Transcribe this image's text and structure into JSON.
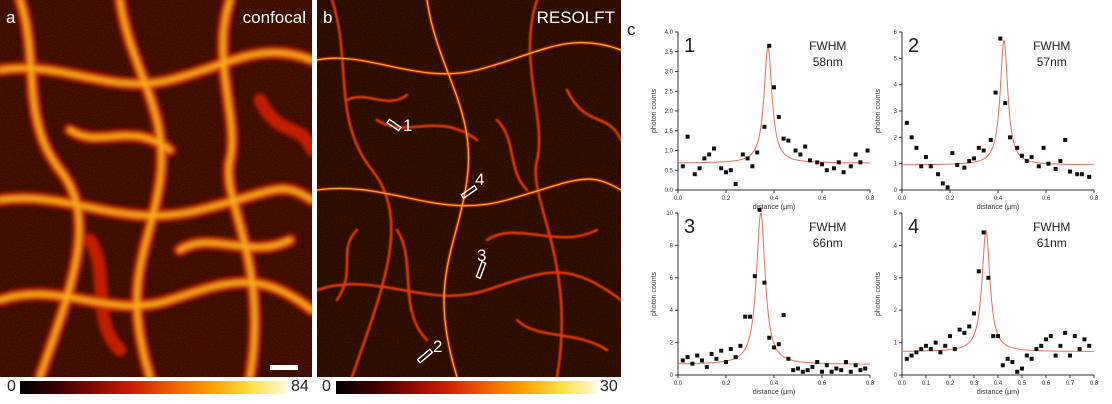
{
  "panels": {
    "a": {
      "letter": "a",
      "title": "confocal",
      "cmin": "0",
      "cmax": "84"
    },
    "b": {
      "letter": "b",
      "title": "RESOLFT",
      "cmin": "0",
      "cmax": "30"
    },
    "c": {
      "letter": "c"
    }
  },
  "markers": [
    {
      "label": "1"
    },
    {
      "label": "4"
    },
    {
      "label": "3"
    },
    {
      "label": "2"
    }
  ],
  "colormap": [
    "#000000",
    "#3a0000",
    "#8a0a00",
    "#d02000",
    "#f06000",
    "#ffa000",
    "#ffe040",
    "#fffbe0"
  ],
  "chart_data": [
    {
      "type": "scatter",
      "id": "1",
      "fwhm_label": "FWHM",
      "fwhm_value": "58nm",
      "xlabel": "distance (µm)",
      "ylabel": "photon counts",
      "xlim": [
        0,
        0.8
      ],
      "ylim": [
        0,
        4.0
      ],
      "xticks": [
        "0.0",
        "0.2",
        "0.4",
        "0.6",
        "0.8"
      ],
      "yticks": [
        "0.0",
        "0.5",
        "1.0",
        "1.5",
        "2.0",
        "2.5",
        "3.0",
        "3.5",
        "4.0"
      ],
      "x": [
        0.02,
        0.04,
        0.07,
        0.09,
        0.11,
        0.13,
        0.15,
        0.18,
        0.2,
        0.22,
        0.24,
        0.27,
        0.29,
        0.31,
        0.33,
        0.36,
        0.38,
        0.4,
        0.42,
        0.44,
        0.46,
        0.49,
        0.51,
        0.53,
        0.55,
        0.58,
        0.6,
        0.62,
        0.65,
        0.67,
        0.69,
        0.72,
        0.74,
        0.76,
        0.79
      ],
      "y": [
        0.6,
        1.35,
        0.4,
        0.55,
        0.8,
        0.9,
        1.05,
        0.55,
        0.45,
        0.5,
        0.15,
        0.9,
        0.8,
        0.6,
        0.95,
        1.6,
        3.65,
        2.6,
        1.85,
        1.3,
        1.25,
        1.0,
        0.9,
        1.1,
        0.75,
        0.7,
        0.65,
        0.5,
        0.55,
        0.7,
        0.45,
        0.6,
        0.9,
        0.7,
        1.0
      ],
      "fit": {
        "baseline": 0.68,
        "amp": 2.95,
        "center": 0.375,
        "gamma": 0.02
      }
    },
    {
      "type": "scatter",
      "id": "2",
      "fwhm_label": "FWHM",
      "fwhm_value": "57nm",
      "xlabel": "distance (µm)",
      "ylabel": "photon counts",
      "xlim": [
        0,
        0.8
      ],
      "ylim": [
        0,
        6
      ],
      "xticks": [
        "0.0",
        "0.2",
        "0.4",
        "0.6",
        "0.8"
      ],
      "yticks": [
        "0",
        "1",
        "2",
        "3",
        "4",
        "5",
        "6"
      ],
      "x": [
        0.02,
        0.04,
        0.06,
        0.08,
        0.1,
        0.12,
        0.15,
        0.17,
        0.19,
        0.21,
        0.23,
        0.26,
        0.28,
        0.3,
        0.32,
        0.34,
        0.37,
        0.39,
        0.41,
        0.43,
        0.45,
        0.48,
        0.5,
        0.52,
        0.54,
        0.57,
        0.59,
        0.61,
        0.64,
        0.66,
        0.68,
        0.7,
        0.73,
        0.75,
        0.78
      ],
      "y": [
        2.55,
        2.0,
        1.6,
        0.9,
        1.25,
        0.9,
        0.6,
        0.25,
        0.1,
        1.4,
        0.95,
        0.85,
        1.1,
        1.2,
        1.6,
        1.5,
        1.9,
        3.7,
        5.75,
        3.3,
        2.0,
        1.6,
        1.3,
        1.1,
        1.25,
        0.9,
        1.6,
        1.0,
        0.8,
        1.1,
        1.9,
        0.7,
        0.6,
        0.6,
        0.5
      ],
      "fit": {
        "baseline": 0.95,
        "amp": 4.75,
        "center": 0.425,
        "gamma": 0.019
      }
    },
    {
      "type": "scatter",
      "id": "3",
      "fwhm_label": "FWHM",
      "fwhm_value": "66nm",
      "xlabel": "distance (µm)",
      "ylabel": "photon counts",
      "xlim": [
        0,
        0.8
      ],
      "ylim": [
        0,
        10
      ],
      "xticks": [
        "0.0",
        "0.2",
        "0.4",
        "0.6",
        "0.8"
      ],
      "yticks": [
        "0",
        "2",
        "4",
        "6",
        "8",
        "10"
      ],
      "x": [
        0.02,
        0.04,
        0.06,
        0.08,
        0.1,
        0.12,
        0.14,
        0.16,
        0.18,
        0.2,
        0.22,
        0.24,
        0.26,
        0.28,
        0.3,
        0.32,
        0.34,
        0.36,
        0.38,
        0.4,
        0.42,
        0.44,
        0.46,
        0.48,
        0.5,
        0.52,
        0.54,
        0.56,
        0.58,
        0.6,
        0.62,
        0.64,
        0.66,
        0.68,
        0.7,
        0.72,
        0.74,
        0.76,
        0.78
      ],
      "y": [
        0.9,
        1.1,
        0.7,
        1.2,
        0.9,
        0.5,
        1.3,
        1.0,
        1.5,
        0.8,
        1.6,
        1.1,
        1.8,
        3.6,
        3.6,
        6.1,
        10.2,
        5.7,
        2.3,
        1.7,
        1.9,
        3.7,
        1.0,
        0.3,
        0.4,
        0.2,
        0.3,
        0.5,
        0.8,
        0.2,
        0.6,
        0.2,
        0.4,
        0.3,
        0.8,
        0.2,
        0.6,
        0.3,
        0.4
      ],
      "fit": {
        "baseline": 0.65,
        "amp": 9.4,
        "center": 0.345,
        "gamma": 0.022
      }
    },
    {
      "type": "scatter",
      "id": "4",
      "fwhm_label": "FWHM",
      "fwhm_value": "61nm",
      "xlabel": "distance (µm)",
      "ylabel": "photon counts",
      "xlim": [
        0,
        0.8
      ],
      "ylim": [
        0,
        5
      ],
      "xticks": [
        "0.0",
        "0.1",
        "0.2",
        "0.3",
        "0.4",
        "0.5",
        "0.6",
        "0.7",
        "0.8"
      ],
      "yticks": [
        "0",
        "1",
        "2",
        "3",
        "4",
        "5"
      ],
      "x": [
        0.02,
        0.04,
        0.06,
        0.08,
        0.1,
        0.12,
        0.14,
        0.16,
        0.18,
        0.2,
        0.22,
        0.24,
        0.26,
        0.28,
        0.3,
        0.32,
        0.34,
        0.36,
        0.38,
        0.4,
        0.42,
        0.44,
        0.46,
        0.48,
        0.5,
        0.52,
        0.54,
        0.56,
        0.58,
        0.6,
        0.62,
        0.64,
        0.66,
        0.68,
        0.7,
        0.72,
        0.74,
        0.76,
        0.78
      ],
      "y": [
        0.5,
        0.6,
        0.7,
        0.8,
        0.9,
        0.8,
        1.0,
        0.7,
        0.9,
        1.2,
        0.8,
        1.4,
        1.3,
        1.5,
        1.9,
        3.2,
        4.4,
        3.0,
        1.2,
        1.2,
        0.3,
        0.5,
        0.4,
        0.1,
        0.2,
        0.6,
        0.5,
        0.8,
        0.9,
        1.1,
        1.2,
        0.6,
        0.9,
        1.3,
        0.6,
        1.2,
        0.8,
        1.1,
        0.9
      ],
      "fit": {
        "baseline": 0.72,
        "amp": 3.75,
        "center": 0.35,
        "gamma": 0.02
      }
    }
  ]
}
